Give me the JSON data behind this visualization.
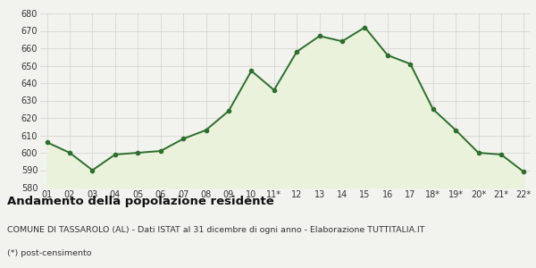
{
  "x_labels": [
    "01",
    "02",
    "03",
    "04",
    "05",
    "06",
    "07",
    "08",
    "09",
    "10",
    "11*",
    "12",
    "13",
    "14",
    "15",
    "16",
    "17",
    "18*",
    "19*",
    "20*",
    "21*",
    "22*"
  ],
  "y_values": [
    606,
    600,
    590,
    599,
    600,
    601,
    608,
    613,
    624,
    647,
    636,
    658,
    667,
    664,
    672,
    656,
    651,
    625,
    613,
    600,
    599,
    589
  ],
  "line_color": "#2d6e2d",
  "fill_color": "#eaf2dc",
  "marker": "o",
  "marker_size": 3.0,
  "line_width": 1.4,
  "ylim": [
    580,
    680
  ],
  "yticks": [
    580,
    590,
    600,
    610,
    620,
    630,
    640,
    650,
    660,
    670,
    680
  ],
  "background_color": "#f2f2ee",
  "plot_bg_color": "#f2f2ee",
  "title": "Andamento della popolazione residente",
  "subtitle": "COMUNE DI TASSAROLO (AL) - Dati ISTAT al 31 dicembre di ogni anno - Elaborazione TUTTITALIA.IT",
  "footnote": "(*) post-censimento",
  "title_fontsize": 9.5,
  "subtitle_fontsize": 6.8,
  "footnote_fontsize": 6.8,
  "grid_color": "#d0d0cc",
  "tick_fontsize": 7.0
}
